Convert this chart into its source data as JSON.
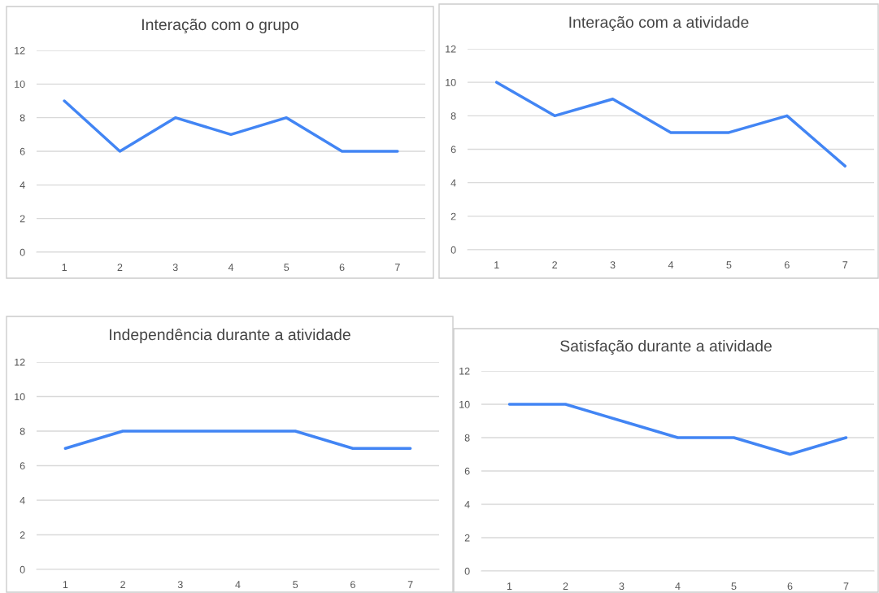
{
  "chart_data": [
    {
      "type": "line",
      "title": "Interação com o grupo",
      "categories": [
        "1",
        "2",
        "3",
        "4",
        "5",
        "6",
        "7"
      ],
      "series": [
        {
          "color": "#4285f4",
          "values": [
            9,
            6,
            8,
            7,
            8,
            6,
            6
          ]
        }
      ],
      "ylim": [
        0,
        12
      ],
      "yticks": [
        0,
        2,
        4,
        6,
        8,
        10,
        12
      ],
      "grid": "y",
      "legend": false
    },
    {
      "type": "line",
      "title": "Interação com a atividade",
      "categories": [
        "1",
        "2",
        "3",
        "4",
        "5",
        "6",
        "7"
      ],
      "series": [
        {
          "color": "#4285f4",
          "values": [
            10,
            8,
            9,
            7,
            7,
            8,
            5
          ]
        }
      ],
      "ylim": [
        0,
        12
      ],
      "yticks": [
        0,
        2,
        4,
        6,
        8,
        10,
        12
      ],
      "grid": "y",
      "legend": false
    },
    {
      "type": "line",
      "title": "Independência durante a atividade",
      "categories": [
        "1",
        "2",
        "3",
        "4",
        "5",
        "6",
        "7"
      ],
      "series": [
        {
          "color": "#4285f4",
          "values": [
            7,
            8,
            8,
            8,
            8,
            7,
            7
          ]
        }
      ],
      "ylim": [
        0,
        12
      ],
      "yticks": [
        0,
        2,
        4,
        6,
        8,
        10,
        12
      ],
      "grid": "y",
      "legend": false
    },
    {
      "type": "line",
      "title": "Satisfação durante a atividade",
      "categories": [
        "1",
        "2",
        "3",
        "4",
        "5",
        "6",
        "7"
      ],
      "series": [
        {
          "color": "#4285f4",
          "values": [
            10,
            10,
            9,
            8,
            8,
            7,
            8
          ]
        }
      ],
      "ylim": [
        0,
        12
      ],
      "yticks": [
        0,
        2,
        4,
        6,
        8,
        10,
        12
      ],
      "grid": "y",
      "legend": false
    }
  ]
}
